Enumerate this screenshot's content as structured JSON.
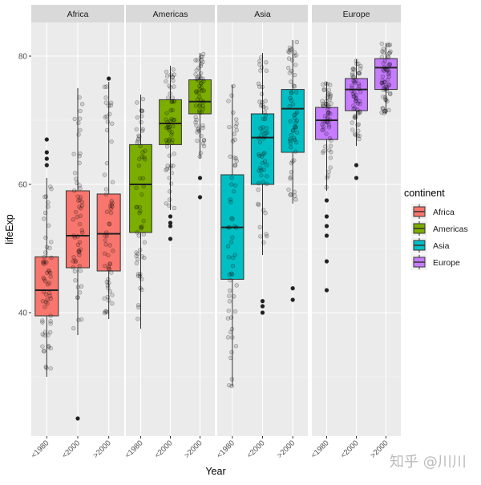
{
  "chart_data": {
    "type": "boxplot",
    "facet_variable": "continent",
    "facets": [
      "Africa",
      "Americas",
      "Asia",
      "Europe"
    ],
    "categories": [
      "<1980",
      "<2000",
      ">2000"
    ],
    "xlabel": "Year",
    "ylabel": "lifeExp",
    "ylim": [
      20.75,
      85.25
    ],
    "yticks": [
      40,
      60,
      80
    ],
    "grid": true,
    "legend": {
      "title": "continent",
      "placement": "right",
      "entries": [
        "Africa",
        "Americas",
        "Asia",
        "Europe"
      ]
    },
    "colors": {
      "Africa": "#F8766D",
      "Americas": "#7CAE00",
      "Asia": "#00BFC4",
      "Europe": "#C77CFF"
    },
    "boxes": {
      "Africa": [
        {
          "x": "<1980",
          "low": 30,
          "q1": 39.5,
          "median": 43.5,
          "q3": 48.7,
          "high": 61,
          "outliers": [
            63,
            64,
            65,
            67
          ]
        },
        {
          "x": "<2000",
          "low": 36.5,
          "q1": 47,
          "median": 52,
          "q3": 59,
          "high": 75,
          "outliers": [
            23.5
          ]
        },
        {
          "x": ">2000",
          "low": 39,
          "q1": 46.5,
          "median": 52.3,
          "q3": 58.5,
          "high": 76,
          "outliers": [
            76.5
          ]
        }
      ],
      "Americas": [
        {
          "x": "<1980",
          "low": 37.5,
          "q1": 52.5,
          "median": 60,
          "q3": 66.2,
          "high": 74,
          "outliers": []
        },
        {
          "x": "<2000",
          "low": 56,
          "q1": 66.2,
          "median": 69.5,
          "q3": 73.2,
          "high": 78.5,
          "outliers": [
            55,
            54,
            53.5,
            51.5
          ]
        },
        {
          "x": ">2000",
          "low": 64,
          "q1": 71,
          "median": 72.9,
          "q3": 76.3,
          "high": 80.5,
          "outliers": [
            61,
            58
          ]
        }
      ],
      "Asia": [
        {
          "x": "<1980",
          "low": 28.5,
          "q1": 45.2,
          "median": 53.3,
          "q3": 61.5,
          "high": 75.5,
          "outliers": []
        },
        {
          "x": "<2000",
          "low": 49,
          "q1": 60,
          "median": 67.3,
          "q3": 71,
          "high": 80.5,
          "outliers": [
            41.8,
            41,
            40
          ]
        },
        {
          "x": ">2000",
          "low": 57,
          "q1": 65,
          "median": 71.8,
          "q3": 74.8,
          "high": 82.5,
          "outliers": [
            43.8,
            42
          ]
        }
      ],
      "Europe": [
        {
          "x": "<1980",
          "low": 59,
          "q1": 67,
          "median": 70,
          "q3": 72,
          "high": 76,
          "outliers": [
            57.5,
            55,
            53.5,
            52,
            48,
            43.5
          ]
        },
        {
          "x": "<2000",
          "low": 66,
          "q1": 71.5,
          "median": 74.8,
          "q3": 76.5,
          "high": 79.5,
          "outliers": [
            63,
            61
          ]
        },
        {
          "x": ">2000",
          "low": 71,
          "q1": 74.8,
          "median": 78.2,
          "q3": 79.6,
          "high": 82,
          "outliers": []
        }
      ]
    }
  },
  "watermark": "知乎 @川川"
}
